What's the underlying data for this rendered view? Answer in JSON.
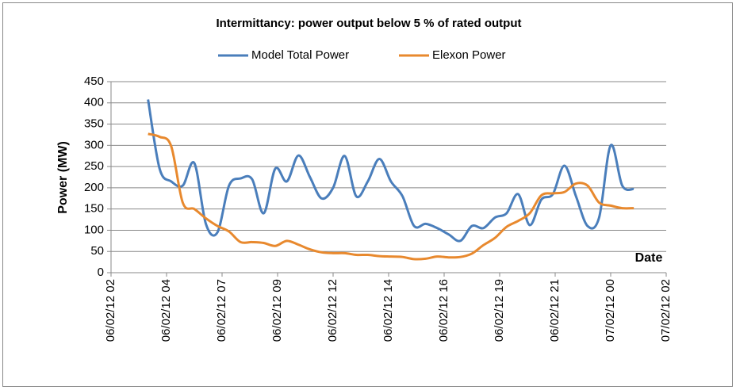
{
  "chart_data": {
    "type": "line",
    "title": "Intermittancy: power output below 5 %   of rated output",
    "y_label": "Power (MW)",
    "x_label": "Date",
    "x": [
      3.6,
      4.1,
      4.6,
      5.1,
      5.6,
      6.1,
      6.6,
      7.1,
      7.6,
      8.1,
      8.6,
      9.1,
      9.6,
      10.1,
      10.6,
      11.1,
      11.6,
      12.1,
      12.6,
      13.1,
      13.6,
      14.1,
      14.6,
      15.1,
      15.6,
      16.1,
      16.6,
      17.1,
      17.6,
      18.1,
      18.6,
      19.1,
      19.6,
      20.1,
      20.6,
      21.1,
      21.6,
      22.1,
      22.6,
      23.1,
      23.6,
      24.1,
      24.6
    ],
    "series": [
      {
        "name": "Model Total Power",
        "color": "#4a7ebb",
        "values": [
          408,
          245,
          215,
          205,
          258,
          115,
          95,
          205,
          222,
          220,
          140,
          245,
          215,
          276,
          225,
          175,
          200,
          275,
          180,
          215,
          268,
          215,
          180,
          110,
          115,
          105,
          90,
          75,
          110,
          105,
          130,
          140,
          185,
          112,
          172,
          185,
          252,
          180,
          110,
          130,
          300,
          205,
          197
        ]
      },
      {
        "name": "Elexon Power",
        "color": "#e8892e",
        "values": [
          327,
          320,
          298,
          165,
          150,
          128,
          110,
          97,
          72,
          72,
          70,
          63,
          75,
          66,
          55,
          48,
          46,
          46,
          42,
          42,
          39,
          38,
          37,
          32,
          33,
          38,
          36,
          37,
          45,
          65,
          82,
          108,
          122,
          140,
          182,
          187,
          190,
          210,
          205,
          165,
          158,
          152,
          152
        ]
      }
    ],
    "xlim": [
      2,
      26
    ],
    "xticks": [
      {
        "value": 2,
        "label": "06/02/12  02"
      },
      {
        "value": 4.4,
        "label": "06/02/12  04"
      },
      {
        "value": 6.8,
        "label": "06/02/12  07"
      },
      {
        "value": 9.2,
        "label": "06/02/12  09"
      },
      {
        "value": 11.6,
        "label": "06/02/12  12"
      },
      {
        "value": 14,
        "label": "06/02/12  14"
      },
      {
        "value": 16.4,
        "label": "06/02/12  16"
      },
      {
        "value": 18.8,
        "label": "06/02/12  19"
      },
      {
        "value": 21.2,
        "label": "06/02/12  21"
      },
      {
        "value": 23.6,
        "label": "07/02/12  00"
      },
      {
        "value": 26,
        "label": "07/02/12  02"
      }
    ],
    "ylim": [
      0,
      450
    ],
    "yticks": [
      0,
      50,
      100,
      150,
      200,
      250,
      300,
      350,
      400,
      450
    ],
    "grid": true,
    "legend": "top"
  }
}
